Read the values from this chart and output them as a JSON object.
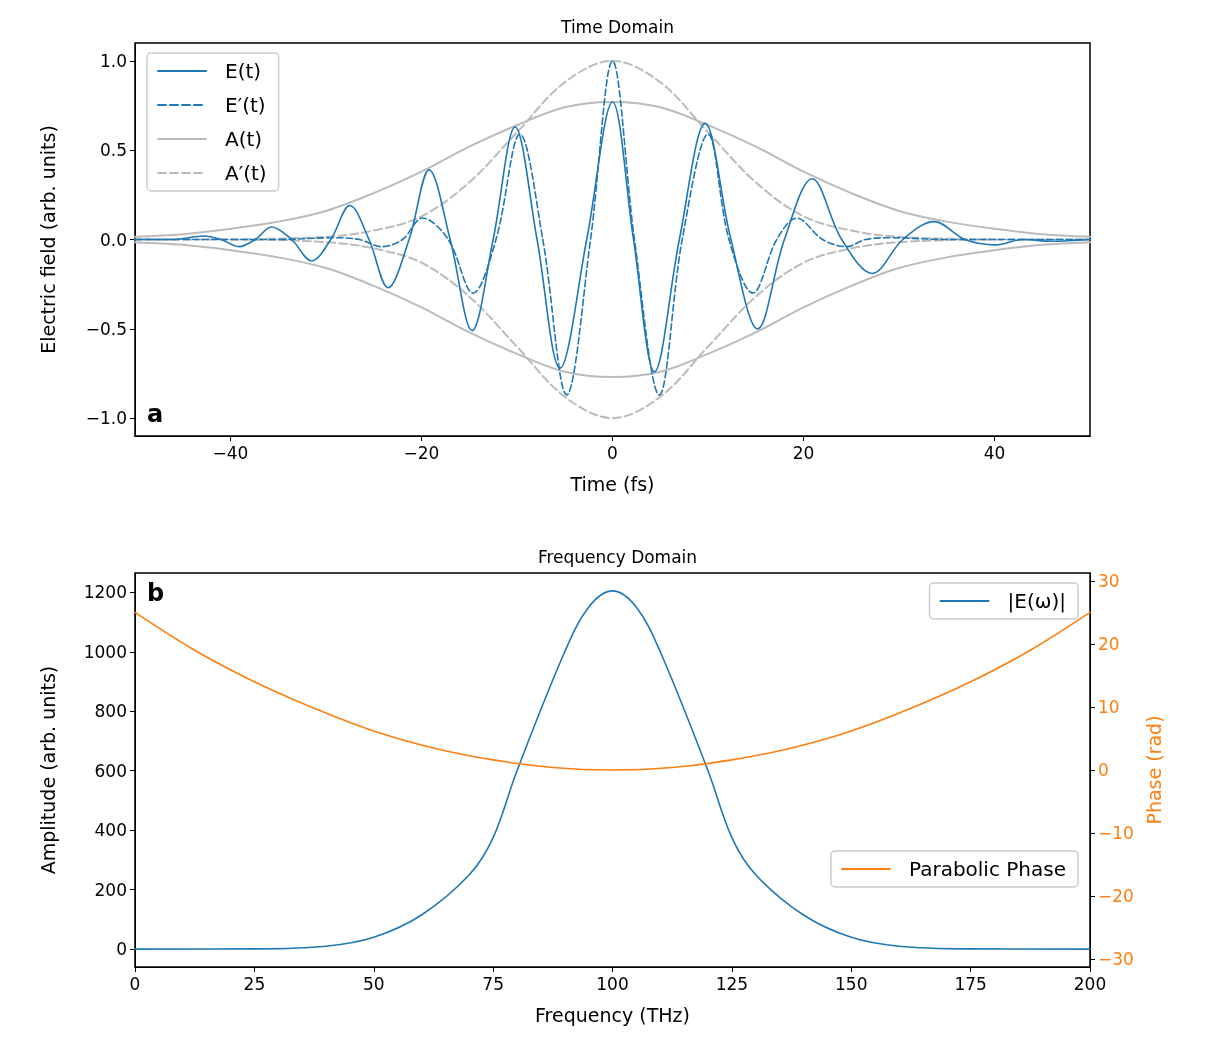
{
  "chart_data": [
    {
      "type": "line",
      "title": "Time Domain",
      "xlabel": "Time (fs)",
      "ylabel": "Electric field (arb. units)",
      "annotations": [
        "a"
      ],
      "xlim": [
        -50,
        50
      ],
      "ylim": [
        -1.1,
        1.1
      ],
      "xticks": [
        {
          "value": -40,
          "label": "−40"
        },
        {
          "value": -20,
          "label": "−20"
        },
        {
          "value": 0,
          "label": "0"
        },
        {
          "value": 20,
          "label": "20"
        },
        {
          "value": 40,
          "label": "40"
        }
      ],
      "yticks": [
        {
          "value": -1,
          "label": "−1.0"
        },
        {
          "value": -0.5,
          "label": "−0.5"
        },
        {
          "value": 0,
          "label": "0.0"
        },
        {
          "value": 0.5,
          "label": "0.5"
        },
        {
          "value": 1,
          "label": "1.0"
        }
      ],
      "grid": false,
      "legend": "top left",
      "marker": "none",
      "series": [
        {
          "name": "E(t)",
          "color": "#1f77b4",
          "line_style": "solid",
          "x": [
            -50,
            -46,
            -42.8,
            -41,
            -39.1,
            -37.4,
            -35.7,
            -33.6,
            -31.5,
            -29.5,
            -27.5,
            -25.5,
            -23.5,
            -21.3,
            -19.2,
            -17,
            -14.7,
            -12.5,
            -10.2,
            -7.9,
            -5.5,
            -2.7,
            0,
            2.2,
            4.4,
            7,
            9.7,
            12.4,
            15.2,
            18,
            20.9,
            24,
            27.2,
            30.4,
            33.7,
            36.9,
            40.1,
            43,
            46,
            50
          ],
          "values": [
            0,
            0,
            0.02,
            0,
            -0.04,
            0,
            0.07,
            0,
            -0.12,
            0,
            0.19,
            0,
            -0.27,
            0,
            0.39,
            0,
            -0.51,
            0,
            0.63,
            0,
            -0.72,
            0,
            0.77,
            0,
            -0.74,
            0,
            0.65,
            0,
            -0.5,
            0,
            0.34,
            0,
            -0.19,
            0,
            0.1,
            0,
            -0.03,
            0,
            -0.01,
            0
          ]
        },
        {
          "name": "E′(t)",
          "color": "#1f77b4",
          "line_style": "dashed",
          "x": [
            -50,
            -35,
            -29,
            -26.5,
            -24.2,
            -22,
            -19.9,
            -17.2,
            -14.6,
            -12.2,
            -9.7,
            -7.3,
            -4.8,
            -2.3,
            0,
            2.3,
            4.9,
            7.3,
            10,
            12.2,
            14.7,
            17.2,
            19.3,
            22,
            24.5,
            26.5,
            29,
            35,
            50
          ],
          "values": [
            0,
            0,
            0.01,
            0,
            -0.04,
            0,
            0.12,
            0,
            -0.3,
            0,
            0.59,
            0,
            -0.87,
            0,
            1,
            0,
            -0.87,
            0,
            0.59,
            0,
            -0.3,
            0,
            0.12,
            0,
            -0.04,
            0,
            0.01,
            0,
            0
          ]
        },
        {
          "name": "A(t)",
          "color": "#bbbbbb",
          "line_style": "solid",
          "x": [
            -50,
            -45,
            -40,
            -35,
            -30,
            -25,
            -20,
            -15,
            -10,
            -5,
            0,
            5,
            10,
            15,
            20,
            25,
            30,
            35,
            40,
            45,
            50
          ],
          "values": [
            0.015,
            0.03,
            0.06,
            0.1,
            0.16,
            0.26,
            0.38,
            0.52,
            0.64,
            0.74,
            0.77,
            0.74,
            0.64,
            0.52,
            0.38,
            0.26,
            0.16,
            0.1,
            0.06,
            0.03,
            0.015
          ]
        },
        {
          "color": "#bbbbbb",
          "line_style": "solid",
          "x": [
            -50,
            -45,
            -40,
            -35,
            -30,
            -25,
            -20,
            -15,
            -10,
            -5,
            0,
            5,
            10,
            15,
            20,
            25,
            30,
            35,
            40,
            45,
            50
          ],
          "values": [
            -0.015,
            -0.03,
            -0.06,
            -0.1,
            -0.16,
            -0.26,
            -0.38,
            -0.52,
            -0.64,
            -0.74,
            -0.77,
            -0.74,
            -0.64,
            -0.52,
            -0.38,
            -0.26,
            -0.16,
            -0.1,
            -0.06,
            -0.03,
            -0.015
          ]
        },
        {
          "name": "A′(t)",
          "color": "#bbbbbb",
          "line_style": "dashed",
          "x": [
            -40,
            -30,
            -25,
            -20,
            -15,
            -10,
            -5,
            0,
            5,
            10,
            15,
            20,
            25,
            30,
            40
          ],
          "values": [
            0,
            0.015,
            0.05,
            0.13,
            0.32,
            0.6,
            0.88,
            1,
            0.88,
            0.6,
            0.32,
            0.13,
            0.05,
            0.015,
            0
          ]
        },
        {
          "color": "#bbbbbb",
          "line_style": "dashed",
          "x": [
            -50,
            -40,
            -30,
            -25,
            -20,
            -15,
            -10,
            -5,
            0,
            5,
            10,
            15,
            20,
            25,
            30,
            40,
            50
          ],
          "values": [
            0,
            0,
            -0.015,
            -0.05,
            -0.13,
            -0.32,
            -0.6,
            -0.88,
            -1,
            -0.88,
            -0.6,
            -0.32,
            -0.13,
            -0.05,
            -0.015,
            0,
            0
          ]
        }
      ]
    },
    {
      "type": "line",
      "title": "Frequency Domain",
      "xlabel": "Frequency (THz)",
      "ylabel": "Amplitude (arb. units)",
      "y2label": "Phase (rad)",
      "annotations": [
        "b"
      ],
      "xlim": [
        0,
        200
      ],
      "ylim": [
        -60,
        1265
      ],
      "y2lim": [
        -31.25,
        31.25
      ],
      "xticks": [
        0,
        25,
        50,
        75,
        100,
        125,
        150,
        175,
        200
      ],
      "yticks": [
        0,
        200,
        400,
        600,
        800,
        1000,
        1200
      ],
      "y2ticks": [
        {
          "value": -30,
          "label": "−30"
        },
        {
          "value": -20,
          "label": "−20"
        },
        {
          "value": -10,
          "label": "−10"
        },
        {
          "value": 0,
          "label": "0"
        },
        {
          "value": 10,
          "label": "10"
        },
        {
          "value": 20,
          "label": "20"
        },
        {
          "value": 30,
          "label": "30"
        }
      ],
      "grid": false,
      "legend": "top right",
      "marker": "none",
      "series": [
        {
          "name": "|E(ω)|",
          "color": "#1f77b4",
          "x": [
            0,
            25,
            40,
            50,
            60,
            70,
            75,
            80,
            90,
            95,
            100,
            105,
            110,
            120,
            125,
            130,
            140,
            150,
            160,
            175,
            200
          ],
          "values": [
            0,
            1,
            10,
            40,
            115,
            250,
            375,
            600,
            1000,
            1150,
            1205,
            1150,
            1000,
            600,
            375,
            250,
            115,
            40,
            10,
            1,
            0
          ]
        },
        {
          "name": "Parabolic Phase",
          "color": "#ff7f0e",
          "axis": "y2",
          "x": [
            0,
            12.5,
            25,
            37.5,
            50,
            62.5,
            75,
            87.5,
            100,
            112.5,
            125,
            137.5,
            150,
            162.5,
            175,
            187.5,
            200
          ],
          "values": [
            25,
            19,
            14,
            9.8,
            6.2,
            3.5,
            1.6,
            0.4,
            0,
            0.4,
            1.6,
            3.5,
            6.2,
            9.8,
            14,
            19,
            25
          ]
        }
      ]
    }
  ]
}
